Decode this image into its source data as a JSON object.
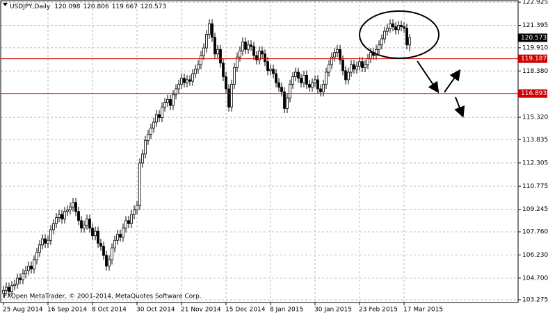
{
  "chart_data": {
    "type": "candlestick",
    "symbol": "USDJPY,Daily",
    "copyright": "FXOpen MetaTrader, © 2001-2014, MetaQuotes Software Corp.",
    "xlim": [
      -1,
      185
    ],
    "ylim": [
      103.09,
      123.02
    ],
    "grid": true,
    "yticks": [
      122.925,
      121.395,
      {
        "value": 119.91,
        "label": "119.910"
      },
      {
        "value": 118.38,
        "label": "118.380"
      },
      {
        "value": 115.32,
        "label": "115.320"
      },
      113.835,
      112.305,
      110.775,
      109.245,
      {
        "value": 107.76,
        "label": "107.760"
      },
      {
        "value": 106.23,
        "label": "106.230"
      },
      {
        "value": 104.7,
        "label": "104.700"
      },
      103.275
    ],
    "xticks": [
      {
        "value": 0,
        "label": "25 Aug 2014"
      },
      {
        "value": 16,
        "label": "16 Sep 2014"
      },
      {
        "value": 32,
        "label": "8 Oct 2014"
      },
      {
        "value": 48,
        "label": "30 Oct 2014"
      },
      {
        "value": 64,
        "label": "21 Nov 2014"
      },
      {
        "value": 80,
        "label": "15 Dec 2014"
      },
      {
        "value": 96,
        "label": "8 Jan 2015"
      },
      {
        "value": 112,
        "label": "30 Jan 2015"
      },
      {
        "value": 128,
        "label": "23 Feb 2015"
      },
      {
        "value": 144,
        "label": "17 Mar 2015"
      }
    ],
    "levels": [
      119.187,
      116.893
    ],
    "level_color": "#cc0000",
    "up_color": "#ffffff",
    "down_color": "#000000",
    "open": [
      103.7,
      103.9,
      104.1,
      103.8,
      104.2,
      104.3,
      104.7,
      104.6,
      105.0,
      105.2,
      105.5,
      105.3,
      105.9,
      106.4,
      106.9,
      107.3,
      107.0,
      107.2,
      107.9,
      108.3,
      108.7,
      108.9,
      108.6,
      109.1,
      109.2,
      109.4,
      109.7,
      109.1,
      108.5,
      108.0,
      108.2,
      108.6,
      108.0,
      107.5,
      107.8,
      107.0,
      106.8,
      106.2,
      105.5,
      105.9,
      106.7,
      107.2,
      107.6,
      107.4,
      108.0,
      108.5,
      108.3,
      108.9,
      109.2,
      109.5,
      112.3,
      112.9,
      113.8,
      114.2,
      114.6,
      115.0,
      115.5,
      115.3,
      116.0,
      116.3,
      116.5,
      116.1,
      116.8,
      117.2,
      117.5,
      117.9,
      117.6,
      117.8,
      117.7,
      118.2,
      118.5,
      118.8,
      119.4,
      119.9,
      120.8,
      121.5,
      120.6,
      119.5,
      119.8,
      118.9,
      118.0,
      117.2,
      116.0,
      117.5,
      118.6,
      119.3,
      119.7,
      120.3,
      119.8,
      120.1,
      120.0,
      119.4,
      119.1,
      119.7,
      119.5,
      119.0,
      118.4,
      118.5,
      118.2,
      117.6,
      117.3,
      117.0,
      115.9,
      116.6,
      117.5,
      118.0,
      118.3,
      117.9,
      117.6,
      118.1,
      117.5,
      117.3,
      117.6,
      117.8,
      117.2,
      117.0,
      117.5,
      118.3,
      118.8,
      119.3,
      119.6,
      119.8,
      119.1,
      118.4,
      117.8,
      118.3,
      118.8,
      118.5,
      118.7,
      119.0,
      118.6,
      118.8,
      119.2,
      119.6,
      119.4,
      119.8,
      120.1,
      120.5,
      121.0,
      121.2,
      121.5,
      121.3,
      121.1,
      121.4,
      121.3,
      121.2,
      120.098
    ],
    "high": [
      104.2,
      104.4,
      104.4,
      104.5,
      104.6,
      105.0,
      105.0,
      105.3,
      105.5,
      105.8,
      105.8,
      106.2,
      106.7,
      107.2,
      107.6,
      107.6,
      107.5,
      108.2,
      108.6,
      109.0,
      109.2,
      109.2,
      109.4,
      109.5,
      109.7,
      110.0,
      110.0,
      109.4,
      108.8,
      108.5,
      108.9,
      108.9,
      108.3,
      108.1,
      108.1,
      107.3,
      107.1,
      106.5,
      106.2,
      107.0,
      107.5,
      107.9,
      107.9,
      108.3,
      108.8,
      108.8,
      109.2,
      109.5,
      109.8,
      112.6,
      113.2,
      114.1,
      114.5,
      114.9,
      115.3,
      115.8,
      115.8,
      116.3,
      116.6,
      116.8,
      116.8,
      117.1,
      117.5,
      117.8,
      118.2,
      118.2,
      118.1,
      118.1,
      118.5,
      118.8,
      119.1,
      119.7,
      120.2,
      121.1,
      121.8,
      121.8,
      120.9,
      120.1,
      120.1,
      119.2,
      118.3,
      117.5,
      117.8,
      118.9,
      119.6,
      120.0,
      120.6,
      120.6,
      120.4,
      120.4,
      120.3,
      119.7,
      120.0,
      120.0,
      119.8,
      119.3,
      118.8,
      118.8,
      118.5,
      117.9,
      117.6,
      117.3,
      116.9,
      117.8,
      118.3,
      118.6,
      118.6,
      118.2,
      118.4,
      118.4,
      117.8,
      117.9,
      118.1,
      118.1,
      117.5,
      117.8,
      118.6,
      119.1,
      119.6,
      119.9,
      120.1,
      120.1,
      119.4,
      118.7,
      118.6,
      119.1,
      119.1,
      119.0,
      119.3,
      119.3,
      119.1,
      119.5,
      119.9,
      119.9,
      120.1,
      120.4,
      120.8,
      121.3,
      121.5,
      121.8,
      121.8,
      121.6,
      121.7,
      121.7,
      121.6,
      121.5,
      120.806
    ],
    "low": [
      103.4,
      103.6,
      103.5,
      103.5,
      103.9,
      104.0,
      104.3,
      104.3,
      104.7,
      104.9,
      105.0,
      105.0,
      105.6,
      106.1,
      106.6,
      106.7,
      106.7,
      106.9,
      107.6,
      108.0,
      108.4,
      108.3,
      108.3,
      108.8,
      108.9,
      109.1,
      108.8,
      108.2,
      107.7,
      107.7,
      107.9,
      107.7,
      107.2,
      107.2,
      106.7,
      106.5,
      105.9,
      105.2,
      105.2,
      105.6,
      106.4,
      106.9,
      107.1,
      107.1,
      107.7,
      108.0,
      108.0,
      108.6,
      108.9,
      109.2,
      112.0,
      112.6,
      113.5,
      113.9,
      114.3,
      114.7,
      115.0,
      115.0,
      115.7,
      116.0,
      115.8,
      115.8,
      116.5,
      116.9,
      117.2,
      117.3,
      117.3,
      117.4,
      117.4,
      117.9,
      118.2,
      118.5,
      119.1,
      119.6,
      120.5,
      120.3,
      119.2,
      119.2,
      118.6,
      117.7,
      116.9,
      115.7,
      115.7,
      117.2,
      118.3,
      119.0,
      119.4,
      119.5,
      119.5,
      119.7,
      119.1,
      118.8,
      118.8,
      119.2,
      118.7,
      118.1,
      118.1,
      117.9,
      117.3,
      117.0,
      116.7,
      115.6,
      115.6,
      116.3,
      117.2,
      117.7,
      117.6,
      117.3,
      117.3,
      117.2,
      117.0,
      117.0,
      117.3,
      116.9,
      116.7,
      116.7,
      117.2,
      118.0,
      118.5,
      119.0,
      119.3,
      118.8,
      118.1,
      117.5,
      117.5,
      118.0,
      118.2,
      118.2,
      118.4,
      118.3,
      118.3,
      118.5,
      118.9,
      119.1,
      119.1,
      119.5,
      119.8,
      120.2,
      120.7,
      120.9,
      121.0,
      120.8,
      120.8,
      121.0,
      120.9,
      119.8,
      119.667
    ],
    "close": [
      103.9,
      104.1,
      103.8,
      104.2,
      104.3,
      104.7,
      104.6,
      105.0,
      105.2,
      105.5,
      105.3,
      105.9,
      106.4,
      106.9,
      107.3,
      107.0,
      107.2,
      107.9,
      108.3,
      108.7,
      108.9,
      108.6,
      109.1,
      109.2,
      109.4,
      109.7,
      109.1,
      108.5,
      108.0,
      108.2,
      108.6,
      108.0,
      107.5,
      107.8,
      107.0,
      106.8,
      106.2,
      105.5,
      105.9,
      106.7,
      107.2,
      107.6,
      107.4,
      108.0,
      108.5,
      108.3,
      108.9,
      109.2,
      109.5,
      112.3,
      112.9,
      113.8,
      114.2,
      114.6,
      115.0,
      115.5,
      115.3,
      116.0,
      116.3,
      116.5,
      116.1,
      116.8,
      117.2,
      117.5,
      117.9,
      117.6,
      117.8,
      117.7,
      118.2,
      118.5,
      118.8,
      119.4,
      119.9,
      120.8,
      121.5,
      120.6,
      119.5,
      119.8,
      118.9,
      118.0,
      117.2,
      116.0,
      117.5,
      118.6,
      119.3,
      119.7,
      120.3,
      119.8,
      120.1,
      120.0,
      119.4,
      119.1,
      119.7,
      119.5,
      119.0,
      118.4,
      118.5,
      118.2,
      117.6,
      117.3,
      117.0,
      115.9,
      116.6,
      117.5,
      118.0,
      118.3,
      117.9,
      117.6,
      118.1,
      117.5,
      117.3,
      117.6,
      117.8,
      117.2,
      117.0,
      117.5,
      118.3,
      118.8,
      119.3,
      119.6,
      119.8,
      119.1,
      118.4,
      117.8,
      118.3,
      118.8,
      118.5,
      118.7,
      119.0,
      118.6,
      118.8,
      119.2,
      119.6,
      119.4,
      119.8,
      120.1,
      120.5,
      121.0,
      121.2,
      121.5,
      121.3,
      121.1,
      121.4,
      121.3,
      121.2,
      120.1,
      120.573
    ]
  }
}
